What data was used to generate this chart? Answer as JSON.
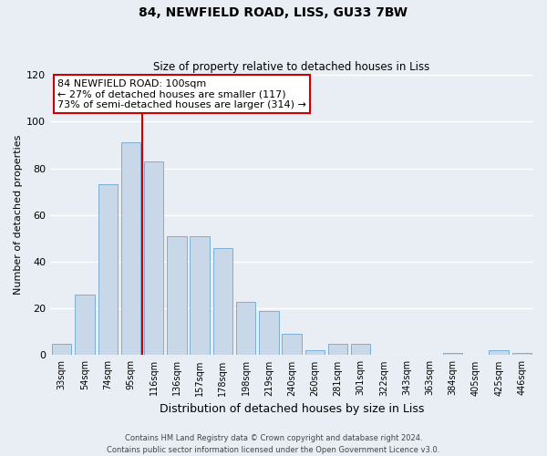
{
  "title": "84, NEWFIELD ROAD, LISS, GU33 7BW",
  "subtitle": "Size of property relative to detached houses in Liss",
  "xlabel": "Distribution of detached houses by size in Liss",
  "ylabel": "Number of detached properties",
  "bar_labels": [
    "33sqm",
    "54sqm",
    "74sqm",
    "95sqm",
    "116sqm",
    "136sqm",
    "157sqm",
    "178sqm",
    "198sqm",
    "219sqm",
    "240sqm",
    "260sqm",
    "281sqm",
    "301sqm",
    "322sqm",
    "343sqm",
    "363sqm",
    "384sqm",
    "405sqm",
    "425sqm",
    "446sqm"
  ],
  "bar_values": [
    5,
    26,
    73,
    91,
    83,
    51,
    51,
    46,
    23,
    19,
    9,
    2,
    5,
    5,
    0,
    0,
    0,
    1,
    0,
    2,
    1
  ],
  "bar_color": "#c8d8e8",
  "bar_edge_color": "#7bafd4",
  "ylim": [
    0,
    120
  ],
  "yticks": [
    0,
    20,
    40,
    60,
    80,
    100,
    120
  ],
  "vline_x": 3.5,
  "vline_color": "#cc0000",
  "annotation_title": "84 NEWFIELD ROAD: 100sqm",
  "annotation_line1": "← 27% of detached houses are smaller (117)",
  "annotation_line2": "73% of semi-detached houses are larger (314) →",
  "annotation_box_color": "#ffffff",
  "annotation_box_edge": "#cc0000",
  "footer1": "Contains HM Land Registry data © Crown copyright and database right 2024.",
  "footer2": "Contains public sector information licensed under the Open Government Licence v3.0.",
  "background_color": "#e8eef4",
  "grid_color": "#ffffff"
}
